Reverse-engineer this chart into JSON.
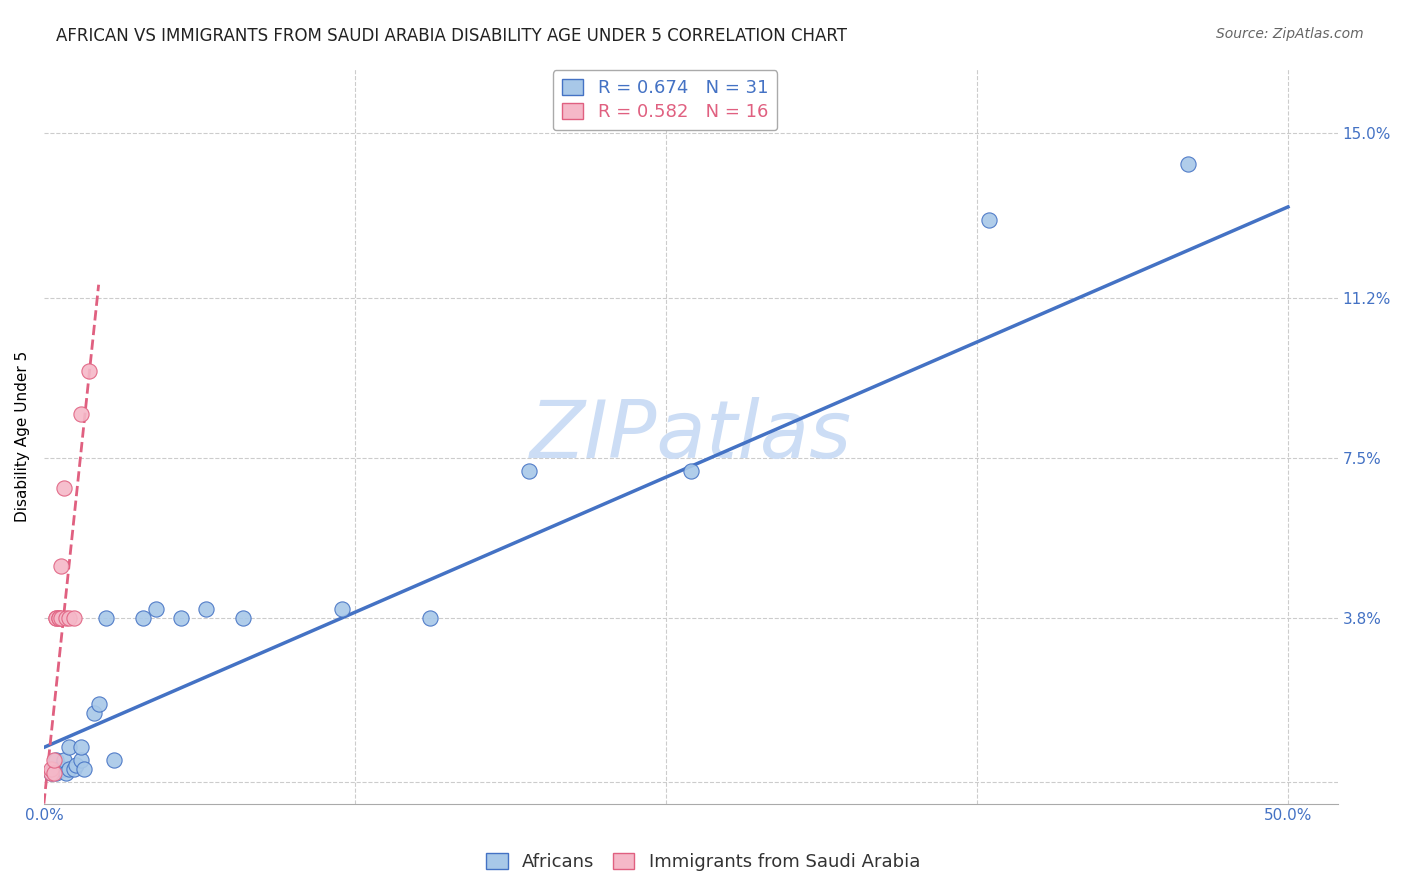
{
  "title": "AFRICAN VS IMMIGRANTS FROM SAUDI ARABIA DISABILITY AGE UNDER 5 CORRELATION CHART",
  "source": "Source: ZipAtlas.com",
  "ylabel": "Disability Age Under 5",
  "xlim": [
    0.0,
    0.52
  ],
  "ylim": [
    -0.005,
    0.165
  ],
  "ytick_positions": [
    0.0,
    0.038,
    0.075,
    0.112,
    0.15
  ],
  "ytick_labels": [
    "",
    "3.8%",
    "7.5%",
    "11.2%",
    "15.0%"
  ],
  "blue_R": 0.674,
  "blue_N": 31,
  "pink_R": 0.582,
  "pink_N": 16,
  "blue_color": "#a8c8e8",
  "pink_color": "#f5b8c8",
  "blue_line_color": "#4472c4",
  "pink_line_color": "#e06080",
  "watermark": "ZIPatlas",
  "blue_scatter_x": [
    0.003,
    0.004,
    0.005,
    0.005,
    0.006,
    0.007,
    0.008,
    0.008,
    0.009,
    0.01,
    0.01,
    0.012,
    0.013,
    0.015,
    0.015,
    0.016,
    0.02,
    0.022,
    0.025,
    0.028,
    0.04,
    0.045,
    0.055,
    0.065,
    0.08,
    0.12,
    0.155,
    0.195,
    0.26,
    0.38,
    0.46
  ],
  "blue_scatter_y": [
    0.002,
    0.003,
    0.002,
    0.005,
    0.003,
    0.003,
    0.003,
    0.005,
    0.002,
    0.003,
    0.008,
    0.003,
    0.004,
    0.005,
    0.008,
    0.003,
    0.016,
    0.018,
    0.038,
    0.005,
    0.038,
    0.04,
    0.038,
    0.04,
    0.038,
    0.04,
    0.038,
    0.072,
    0.072,
    0.13,
    0.143
  ],
  "pink_scatter_x": [
    0.003,
    0.003,
    0.004,
    0.004,
    0.005,
    0.005,
    0.006,
    0.006,
    0.007,
    0.007,
    0.008,
    0.009,
    0.01,
    0.012,
    0.015,
    0.018
  ],
  "pink_scatter_y": [
    0.002,
    0.003,
    0.002,
    0.005,
    0.038,
    0.038,
    0.038,
    0.038,
    0.05,
    0.038,
    0.068,
    0.038,
    0.038,
    0.038,
    0.085,
    0.095
  ],
  "blue_trendline_x": [
    0.0,
    0.5
  ],
  "blue_trendline_y": [
    0.008,
    0.133
  ],
  "pink_trendline_x": [
    0.0,
    0.022
  ],
  "pink_trendline_y": [
    -0.005,
    0.115
  ],
  "grid_color": "#cccccc",
  "grid_xticks": [
    0.125,
    0.25,
    0.375,
    0.5
  ],
  "background_color": "#ffffff",
  "title_fontsize": 12,
  "axis_label_fontsize": 11,
  "tick_fontsize": 11,
  "legend_fontsize": 13,
  "watermark_color": "#ccddf5",
  "watermark_fontsize": 58
}
